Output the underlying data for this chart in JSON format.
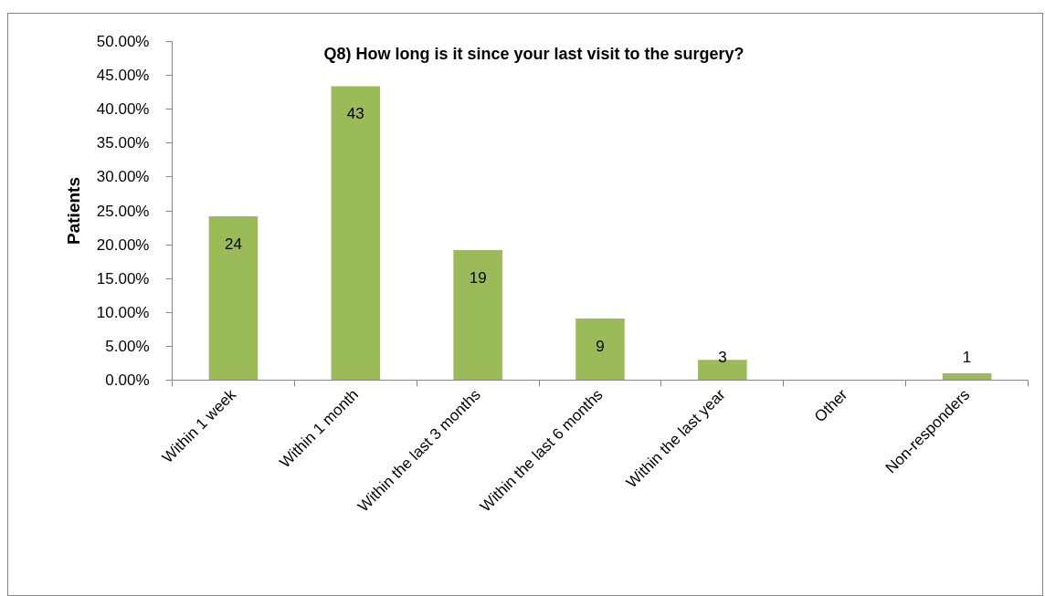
{
  "chart_data": {
    "type": "bar",
    "title": "Q8) How long is it since your last visit to the surgery?",
    "ylabel": "Patients",
    "categories": [
      "Within 1 week",
      "Within 1 month",
      "Within the last 3 months",
      "Within the last 6 months",
      "Within the last year",
      "Other",
      "Non-responders"
    ],
    "values": [
      24.2,
      43.4,
      19.2,
      9.1,
      3.0,
      0,
      1.0
    ],
    "value_labels": [
      "24",
      "43",
      "19",
      "9",
      "3",
      null,
      "1"
    ],
    "color": "#9bbb59",
    "ylim": [
      0,
      50
    ],
    "yticks": [
      {
        "value": 0,
        "label": "0.00%"
      },
      {
        "value": 5,
        "label": "5.00%"
      },
      {
        "value": 10,
        "label": "10.00%"
      },
      {
        "value": 15,
        "label": "15.00%"
      },
      {
        "value": 20,
        "label": "20.00%"
      },
      {
        "value": 25,
        "label": "25.00%"
      },
      {
        "value": 30,
        "label": "30.00%"
      },
      {
        "value": 35,
        "label": "35.00%"
      },
      {
        "value": 40,
        "label": "40.00%"
      },
      {
        "value": 45,
        "label": "45.00%"
      },
      {
        "value": 50,
        "label": "50.00%"
      }
    ],
    "grid": false
  }
}
